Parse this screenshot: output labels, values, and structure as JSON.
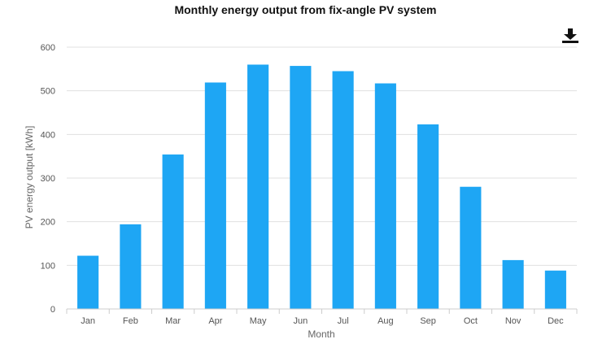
{
  "toolbar": {
    "download_icon": "download-icon"
  },
  "chart_data": {
    "type": "bar",
    "title": "Monthly energy output from fix-angle PV system",
    "xlabel": "Month",
    "ylabel": "PV energy output [kWh]",
    "categories": [
      "Jan",
      "Feb",
      "Mar",
      "Apr",
      "May",
      "Jun",
      "Jul",
      "Aug",
      "Sep",
      "Oct",
      "Nov",
      "Dec"
    ],
    "values": [
      122,
      194,
      354,
      519,
      560,
      557,
      545,
      517,
      423,
      280,
      112,
      88
    ],
    "ylim": [
      0,
      600
    ],
    "yticks": [
      0,
      100,
      200,
      300,
      400,
      500,
      600
    ],
    "grid": true,
    "legend": "none",
    "bar_color": "#1ea6f4",
    "grid_color": "#e0e0e0"
  }
}
